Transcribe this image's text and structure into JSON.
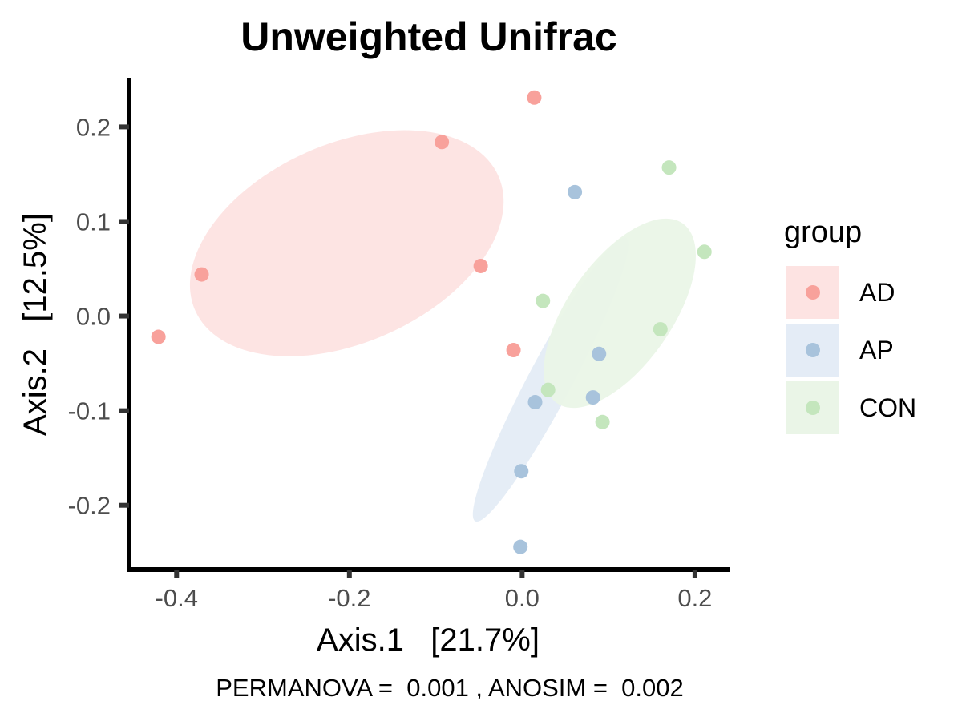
{
  "chart_data": {
    "type": "scatter",
    "title": "Unweighted Unifrac",
    "xlabel": "Axis.1   [21.7%]",
    "ylabel": "Axis.2   [12.5%]",
    "caption": "PERMANOVA =  0.001 , ANOSIM =  0.002",
    "xlim": [
      -0.455,
      0.24
    ],
    "ylim": [
      -0.268,
      0.252
    ],
    "x_ticks": [
      -0.4,
      -0.2,
      0.0,
      0.2
    ],
    "x_tick_labels": [
      "-0.4",
      "-0.2",
      "0.0",
      "0.2"
    ],
    "y_ticks": [
      -0.2,
      -0.1,
      0.0,
      0.1,
      0.2
    ],
    "y_tick_labels": [
      "-0.2",
      "-0.1",
      "0.0",
      "0.1",
      "0.2"
    ],
    "grid": false,
    "legend": {
      "title": "group",
      "placement": "right"
    },
    "series": [
      {
        "name": "AD",
        "color": "#F8A19B",
        "fill": "#FDE3E2",
        "ellipse": {
          "cx": -0.203,
          "cy": 0.077,
          "rx": 0.192,
          "ry": 0.105,
          "angle_deg": 24
        },
        "points": [
          {
            "x": 0.014,
            "y": 0.231
          },
          {
            "x": -0.093,
            "y": 0.184
          },
          {
            "x": -0.048,
            "y": 0.053
          },
          {
            "x": -0.371,
            "y": 0.044
          },
          {
            "x": -0.421,
            "y": -0.022
          },
          {
            "x": -0.01,
            "y": -0.036
          }
        ]
      },
      {
        "name": "AP",
        "color": "#A8C3DC",
        "fill": "#E4ECF6",
        "ellipse": {
          "cx": 0.033,
          "cy": -0.067,
          "rx": 0.186,
          "ry": 0.023,
          "angle_deg": 62
        },
        "points": [
          {
            "x": 0.061,
            "y": 0.131
          },
          {
            "x": 0.089,
            "y": -0.04
          },
          {
            "x": 0.082,
            "y": -0.086
          },
          {
            "x": 0.015,
            "y": -0.091
          },
          {
            "x": -0.001,
            "y": -0.164
          },
          {
            "x": -0.002,
            "y": -0.244
          }
        ]
      },
      {
        "name": "CON",
        "color": "#C4E6BD",
        "fill": "#EAF5E7",
        "ellipse": {
          "cx": 0.113,
          "cy": 0.003,
          "rx": 0.127,
          "ry": 0.055,
          "angle_deg": 55
        },
        "points": [
          {
            "x": 0.17,
            "y": 0.157
          },
          {
            "x": 0.211,
            "y": 0.068
          },
          {
            "x": 0.024,
            "y": 0.016
          },
          {
            "x": 0.16,
            "y": -0.014
          },
          {
            "x": 0.03,
            "y": -0.078
          },
          {
            "x": 0.093,
            "y": -0.112
          }
        ]
      }
    ]
  }
}
